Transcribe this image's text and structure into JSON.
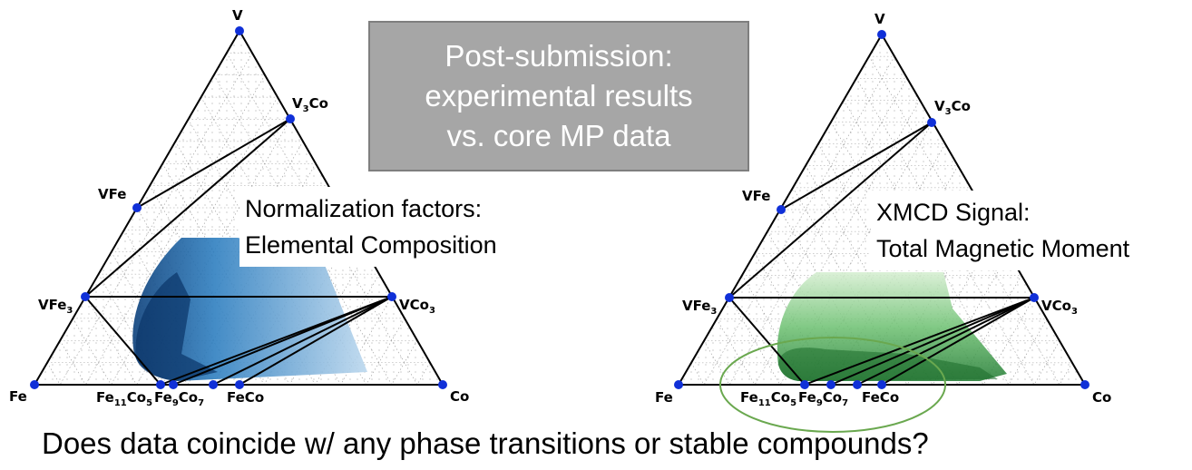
{
  "gray_box": {
    "lines": [
      "Post-submission:",
      "experimental results",
      "vs. core MP data"
    ]
  },
  "left_panel": {
    "note_lines": [
      "Normalization factors:",
      "Elemental Composition"
    ],
    "labels": {
      "v": "V",
      "v3co_main": "V",
      "v3co_sub": "3",
      "v3co_tail": "Co",
      "vfe": "VFe",
      "vfe3_main": "VFe",
      "vfe3_sub": "3",
      "vco3_main": "VCo",
      "vco3_sub": "3",
      "fe": "Fe",
      "co": "Co",
      "fe11co5_a": "Fe",
      "fe11co5_b": "11",
      "fe11co5_c": "Co",
      "fe11co5_d": "5",
      "fe9co7_a": "Fe",
      "fe9co7_b": "9",
      "fe9co7_c": "Co",
      "fe9co7_d": "7",
      "feco": "FeCo"
    },
    "colors": {
      "region": "#1f6fb4",
      "point": "#1030d8"
    }
  },
  "right_panel": {
    "note_lines": [
      "XMCD Signal:",
      "Total Magnetic Moment"
    ],
    "labels": {
      "v": "V",
      "v3co_main": "V",
      "v3co_sub": "3",
      "v3co_tail": "Co",
      "vfe": "VFe",
      "vfe3_main": "VFe",
      "vfe3_sub": "3",
      "vco3_main": "VCo",
      "vco3_sub": "3",
      "fe": "Fe",
      "co": "Co",
      "fe11co5_a": "Fe",
      "fe11co5_b": "11",
      "fe11co5_c": "Co",
      "fe11co5_d": "5",
      "fe9co7_a": "Fe",
      "fe9co7_b": "9",
      "fe9co7_c": "Co",
      "fe9co7_d": "7",
      "feco": "FeCo"
    },
    "colors": {
      "region": "#3aa04a",
      "point": "#1030d8",
      "ellipse": "#6aa84f"
    }
  },
  "question": "Does data coincide w/ any phase transitions or stable compounds?"
}
